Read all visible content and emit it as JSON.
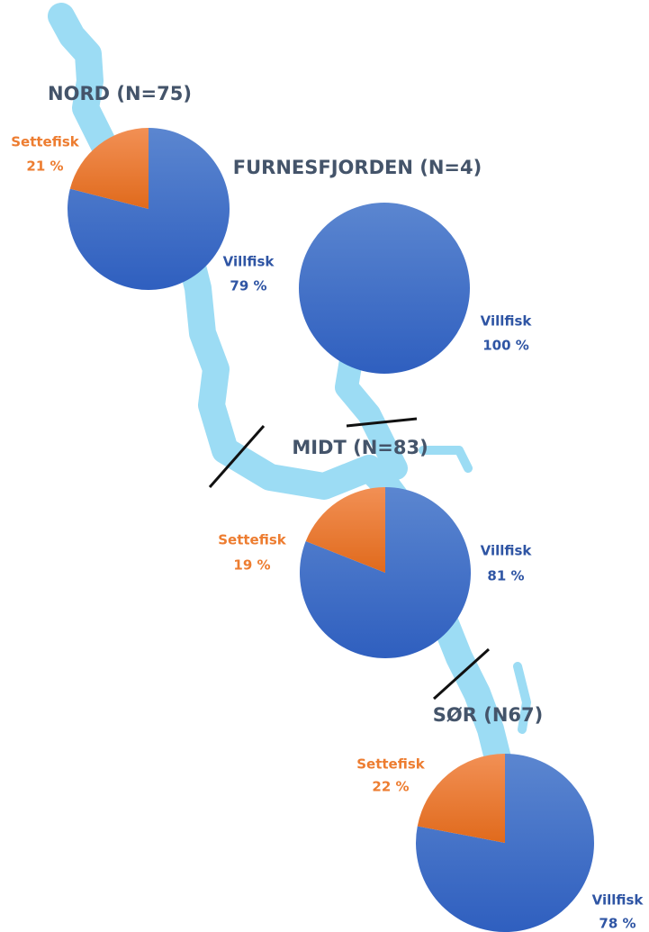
{
  "chart_data": [
    {
      "type": "pie",
      "title": "NORD (N=75)",
      "categories": [
        "Villfisk",
        "Settefisk"
      ],
      "values": [
        79,
        21
      ],
      "value_labels": [
        "79 %",
        "21 %"
      ],
      "colors": [
        "#4472c4",
        "#ed7d31"
      ]
    },
    {
      "type": "pie",
      "title": "FURNESFJORDEN (N=4)",
      "categories": [
        "Villfisk"
      ],
      "values": [
        100
      ],
      "value_labels": [
        "100 %"
      ],
      "colors": [
        "#4472c4"
      ]
    },
    {
      "type": "pie",
      "title": "MIDT (N=83)",
      "categories": [
        "Villfisk",
        "Settefisk"
      ],
      "values": [
        81,
        19
      ],
      "value_labels": [
        "81 %",
        "19 %"
      ],
      "colors": [
        "#4472c4",
        "#ed7d31"
      ]
    },
    {
      "type": "pie",
      "title": "SØR (N67)",
      "categories": [
        "Villfisk",
        "Settefisk"
      ],
      "values": [
        78,
        22
      ],
      "value_labels": [
        "78 %",
        "22 %"
      ],
      "colors": [
        "#4472c4",
        "#ed7d31"
      ]
    }
  ]
}
